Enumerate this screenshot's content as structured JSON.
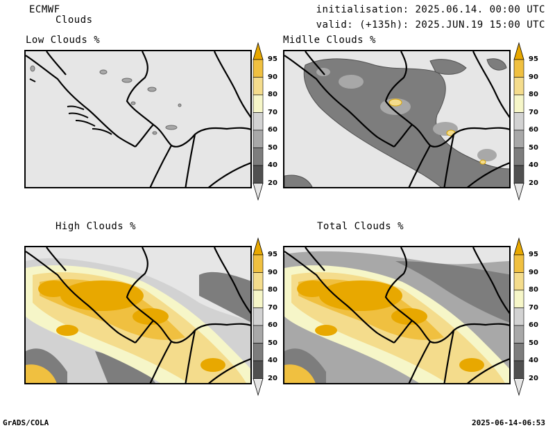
{
  "header": {
    "model": "ECMWF",
    "product": "Clouds",
    "initialisation": "initialisation: 2025.06.14. 00:00 UTC",
    "valid": "valid: (+135h): 2025.JUN.19 15:00 UTC"
  },
  "panels": [
    {
      "title": "Low Clouds %"
    },
    {
      "title": "Midlle Clouds %"
    },
    {
      "title": "High Clouds %"
    },
    {
      "title": "Total Clouds %"
    }
  ],
  "colorbar": {
    "levels": [
      "95",
      "90",
      "80",
      "70",
      "60",
      "50",
      "40",
      "20"
    ],
    "colors": [
      "#e8a800",
      "#f0c040",
      "#f4dc8c",
      "#f6f6c8",
      "#d2d2d2",
      "#a8a8a8",
      "#7d7d7d",
      "#505050",
      "#e6e6e6"
    ]
  },
  "footer": {
    "left": "GrADS/COLA",
    "right": "2025-06-14-06:53"
  }
}
